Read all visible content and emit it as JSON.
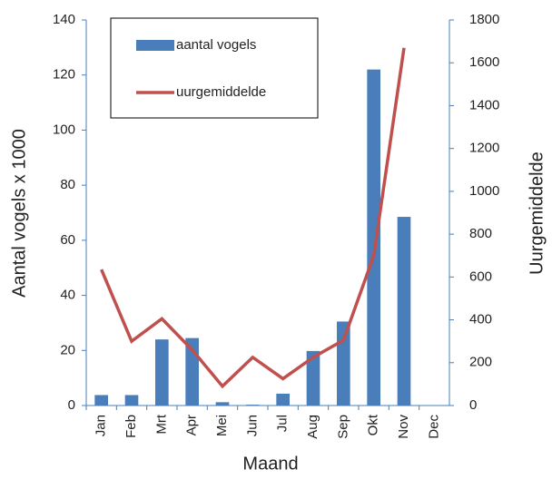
{
  "chart_data": {
    "type": "combo",
    "xlabel": "Maand",
    "ylabel": "Aantal vogels x 1000",
    "y2label": "Uurgemiddelde",
    "categories": [
      "Jan",
      "Feb",
      "Mrt",
      "Apr",
      "Mei",
      "Jun",
      "Jul",
      "Aug",
      "Sep",
      "Okt",
      "Nov",
      "Dec"
    ],
    "series": [
      {
        "name": "aantal vogels",
        "type": "bar",
        "color": "#4a7ebb",
        "values": [
          3.8,
          3.8,
          24,
          24.5,
          1.2,
          0.3,
          4.3,
          19.8,
          30.5,
          122,
          68.5,
          null
        ]
      },
      {
        "name": "uurgemiddelde",
        "type": "line",
        "axis": "y2",
        "color": "#c0504d",
        "values": [
          635,
          300,
          405,
          260,
          90,
          225,
          125,
          225,
          305,
          700,
          1670,
          null
        ]
      }
    ],
    "ylim": [
      0,
      140
    ],
    "yticks": [
      0,
      20,
      40,
      60,
      80,
      100,
      120,
      140
    ],
    "y2lim": [
      0,
      1800
    ],
    "y2ticks": [
      0,
      200,
      400,
      600,
      800,
      1000,
      1200,
      1400,
      1600,
      1800
    ]
  }
}
